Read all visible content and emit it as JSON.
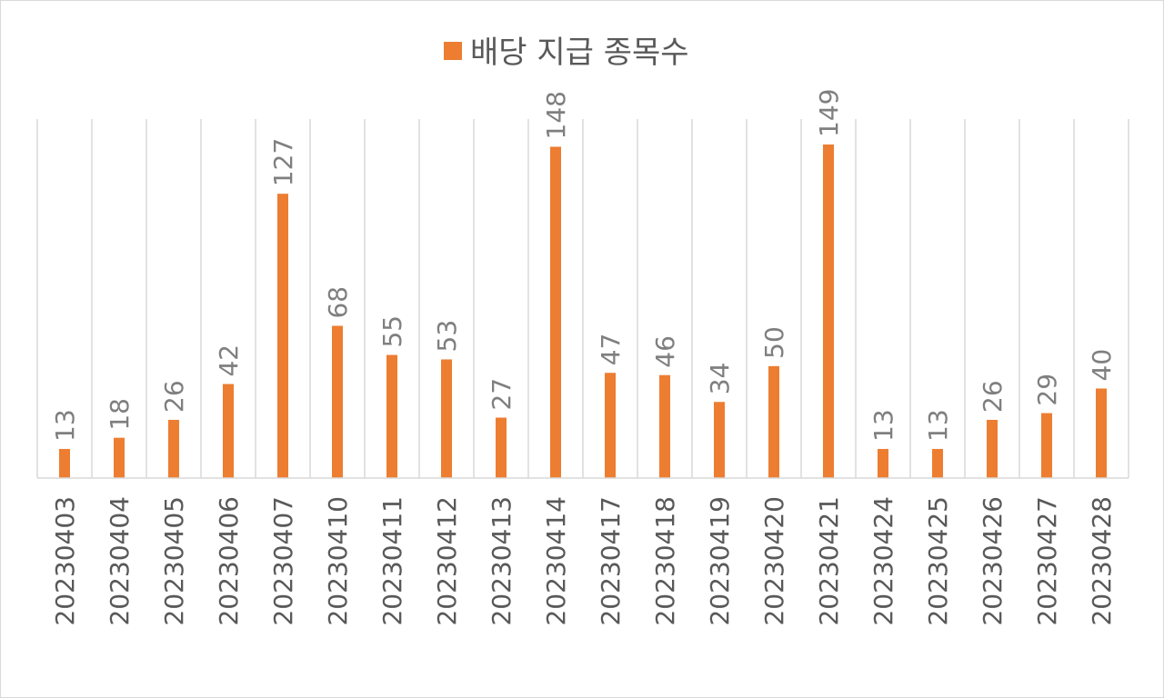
{
  "chart_data": {
    "type": "bar",
    "title": "",
    "xlabel": "",
    "ylabel": "",
    "legend_position": "top",
    "grid": "vertical",
    "ylim": [
      0,
      149
    ],
    "categories": [
      "20230403",
      "20230404",
      "20230405",
      "20230406",
      "20230407",
      "20230410",
      "20230411",
      "20230412",
      "20230413",
      "20230414",
      "20230417",
      "20230418",
      "20230419",
      "20230420",
      "20230421",
      "20230424",
      "20230425",
      "20230426",
      "20230427",
      "20230428"
    ],
    "series": [
      {
        "name": "배당 지급 종목수",
        "color": "#ED7D31",
        "values": [
          13,
          18,
          26,
          42,
          127,
          68,
          55,
          53,
          27,
          148,
          47,
          46,
          34,
          50,
          149,
          13,
          13,
          26,
          29,
          40
        ]
      }
    ]
  }
}
